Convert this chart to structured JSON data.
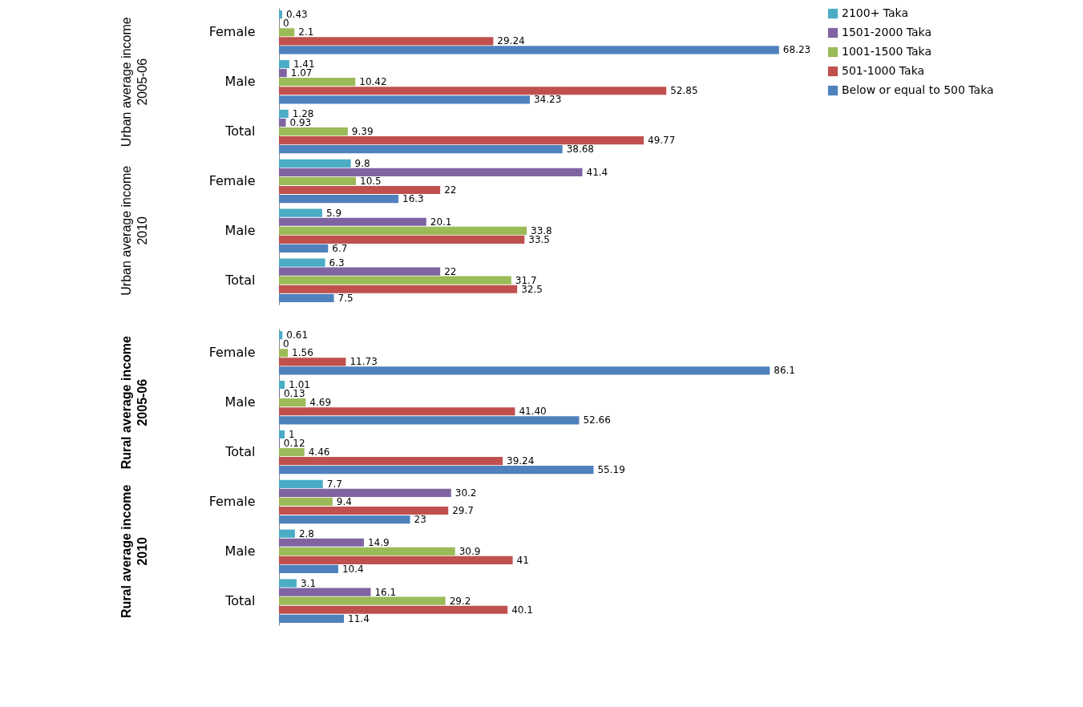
{
  "chart_data": [
    {
      "type": "bar",
      "orientation": "horizontal",
      "categories": [
        "Female",
        "Male",
        "Total",
        "Female",
        "Male",
        "Total"
      ],
      "annotations": [
        "Urban average income\n2005-06",
        "Urban average income\n2010"
      ],
      "tick_labels": "y",
      "legend": "right",
      "data_labels": true,
      "series": [
        {
          "name": "2100+ Taka",
          "color": "#4bacc6",
          "values": [
            0.43,
            1.41,
            1.28,
            9.8,
            5.9,
            6.3
          ]
        },
        {
          "name": "1501-2000 Taka",
          "color": "#8064a2",
          "values": [
            0,
            1.07,
            0.93,
            41.4,
            20.1,
            22
          ]
        },
        {
          "name": "1001-1500 Taka",
          "color": "#9bbb59",
          "values": [
            2.1,
            10.42,
            9.39,
            10.5,
            33.8,
            31.7
          ]
        },
        {
          "name": "501-1000 Taka",
          "color": "#c0504d",
          "values": [
            29.24,
            52.85,
            49.77,
            22,
            33.5,
            32.5
          ]
        },
        {
          "name": "Below or equal to 500 Taka",
          "color": "#4f81bd",
          "values": [
            68.23,
            34.23,
            38.68,
            16.3,
            6.7,
            7.5
          ]
        }
      ]
    },
    {
      "type": "bar",
      "orientation": "horizontal",
      "categories": [
        "Female",
        "Male",
        "Total",
        "Female",
        "Male",
        "Total"
      ],
      "annotations": [
        "Rural average income\n2005-06",
        "Rural average income\n2010"
      ],
      "tick_labels": "y",
      "legend": "right",
      "series": [
        {
          "name": "2100+ Taka",
          "color": "#4bacc6",
          "values": [
            0.61,
            1.01,
            1,
            7.7,
            2.8,
            3.1
          ],
          "value_labels": [
            "0.61",
            "1.01",
            "1",
            "7.7",
            "2.8",
            "3.1"
          ]
        },
        {
          "name": "1501-2000 Taka",
          "color": "#8064a2",
          "values": [
            0,
            0.13,
            0.12,
            30.2,
            14.9,
            16.1
          ],
          "value_labels": [
            "0",
            "0.13",
            "0.12",
            "30.2",
            "14.9",
            "16.1"
          ]
        },
        {
          "name": "1001-1500 Taka",
          "color": "#9bbb59",
          "values": [
            1.56,
            4.69,
            4.46,
            9.4,
            30.9,
            29.2
          ],
          "value_labels": [
            "1.56",
            "4.69",
            "4.46",
            "9.4",
            "30.9",
            "29.2"
          ]
        },
        {
          "name": "501-1000 Taka",
          "color": "#c0504d",
          "values": [
            11.73,
            41.4,
            39.24,
            29.7,
            41,
            40.1
          ],
          "value_labels": [
            "11.73",
            "41.40",
            "39.24",
            "29.7",
            "41",
            "40.1"
          ]
        },
        {
          "name": "Below or equal to 500 Taka",
          "color": "#4f81bd",
          "values": [
            86.1,
            52.66,
            55.19,
            23,
            10.4,
            11.4
          ],
          "value_labels": [
            "86.1",
            "52.66",
            "55.19",
            "23",
            "10.4",
            "11.4"
          ]
        }
      ]
    }
  ]
}
